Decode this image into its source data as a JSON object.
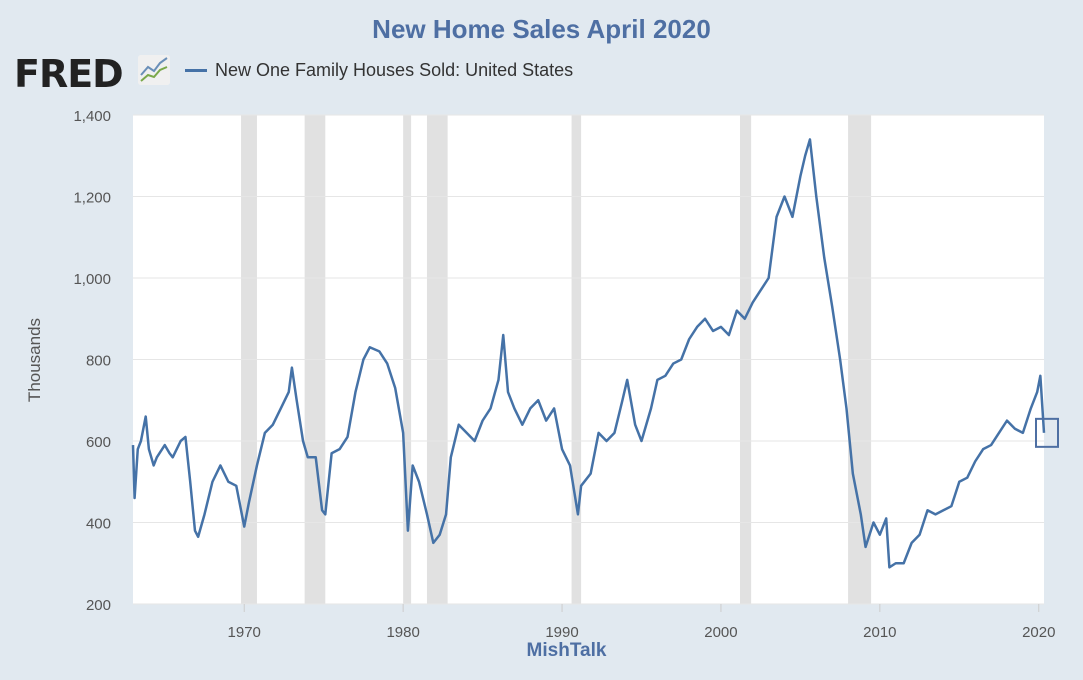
{
  "chart_data": {
    "type": "line",
    "title": "New Home Sales April 2020",
    "xlabel": "MishTalk",
    "ylabel": "Thousands",
    "logo": "FRED",
    "legend": [
      "New One Family Houses Sold: United States"
    ],
    "ylim": [
      200,
      1400
    ],
    "xlim": [
      1963,
      2020.33
    ],
    "yticks": [
      "200",
      "400",
      "600",
      "800",
      "1,000",
      "1,200",
      "1,400"
    ],
    "ytick_values": [
      200,
      400,
      600,
      800,
      1000,
      1200,
      1400
    ],
    "xticks": [
      "1970",
      "1980",
      "1990",
      "2000",
      "2010",
      "2020"
    ],
    "xtick_values": [
      1970,
      1980,
      1990,
      2000,
      2010,
      2020
    ],
    "recessions": [
      [
        1969.8,
        1970.8
      ],
      [
        1973.8,
        1975.1
      ],
      [
        1980.0,
        1980.5
      ],
      [
        1981.5,
        1982.8
      ],
      [
        1990.6,
        1991.2
      ],
      [
        2001.2,
        2001.9
      ],
      [
        2008.0,
        2009.45
      ]
    ],
    "series": [
      {
        "name": "New One Family Houses Sold: United States",
        "color": "#4572a7",
        "x": [
          1963.0,
          1963.1,
          1963.3,
          1963.5,
          1963.8,
          1964,
          1964.3,
          1964.5,
          1965,
          1965.3,
          1965.5,
          1966,
          1966.3,
          1966.6,
          1966.9,
          1967.1,
          1967.5,
          1968,
          1968.5,
          1969,
          1969.5,
          1970,
          1970.3,
          1970.8,
          1971.3,
          1971.8,
          1972.3,
          1972.8,
          1973,
          1973.3,
          1973.7,
          1974,
          1974.5,
          1974.9,
          1975.1,
          1975.5,
          1976,
          1976.5,
          1977,
          1977.5,
          1977.9,
          1978.5,
          1979,
          1979.5,
          1980,
          1980.3,
          1980.6,
          1981,
          1981.5,
          1981.9,
          1982.3,
          1982.7,
          1983,
          1983.5,
          1984,
          1984.5,
          1985,
          1985.5,
          1986,
          1986.3,
          1986.6,
          1987,
          1987.5,
          1988,
          1988.5,
          1989,
          1989.5,
          1990,
          1990.5,
          1991,
          1991.2,
          1991.8,
          1992.3,
          1992.8,
          1993.3,
          1993.8,
          1994.1,
          1994.6,
          1995,
          1995.6,
          1996,
          1996.5,
          1997,
          1997.5,
          1998,
          1998.5,
          1999,
          1999.5,
          2000,
          2000.5,
          2001,
          2001.5,
          2002,
          2002.5,
          2003,
          2003.5,
          2004,
          2004.5,
          2005,
          2005.3,
          2005.6,
          2006,
          2006.5,
          2007,
          2007.5,
          2007.9,
          2008.3,
          2008.8,
          2009.1,
          2009.6,
          2010,
          2010.4,
          2010.6,
          2011,
          2011.5,
          2012,
          2012.5,
          2013,
          2013.5,
          2014,
          2014.5,
          2015,
          2015.5,
          2016,
          2016.5,
          2017,
          2017.5,
          2018,
          2018.5,
          2019,
          2019.5,
          2019.9,
          2020.1,
          2020.33
        ],
        "values": [
          590,
          460,
          580,
          600,
          660,
          580,
          540,
          560,
          590,
          570,
          560,
          600,
          610,
          500,
          380,
          365,
          420,
          500,
          540,
          500,
          490,
          390,
          450,
          540,
          620,
          640,
          680,
          720,
          780,
          700,
          600,
          560,
          560,
          430,
          420,
          570,
          580,
          610,
          720,
          800,
          830,
          820,
          790,
          730,
          620,
          380,
          540,
          500,
          420,
          350,
          370,
          420,
          560,
          640,
          620,
          600,
          650,
          680,
          750,
          860,
          720,
          680,
          640,
          680,
          700,
          650,
          680,
          580,
          540,
          420,
          490,
          520,
          620,
          600,
          620,
          700,
          750,
          640,
          600,
          680,
          750,
          760,
          790,
          800,
          850,
          880,
          900,
          870,
          880,
          860,
          920,
          900,
          940,
          970,
          1000,
          1150,
          1200,
          1150,
          1250,
          1300,
          1340,
          1200,
          1050,
          930,
          800,
          680,
          520,
          420,
          340,
          400,
          370,
          410,
          290,
          300,
          300,
          350,
          370,
          430,
          420,
          430,
          440,
          500,
          510,
          550,
          580,
          590,
          620,
          650,
          630,
          620,
          680,
          720,
          760,
          620
        ]
      }
    ]
  }
}
